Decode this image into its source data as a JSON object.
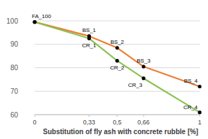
{
  "chart_data": {
    "type": "line",
    "x_label": "Substitution of fly ash with concrete rubble [%]",
    "x": [
      0,
      0.33,
      0.5,
      0.66,
      1
    ],
    "series": [
      {
        "name": "BS",
        "color": "#ed7d31",
        "marker": "circle",
        "values": [
          99.5,
          93.5,
          88.5,
          80.5,
          72
        ],
        "point_labels": [
          "FA_100",
          "BS_1",
          "BS_2",
          "BS_3",
          "BS_4"
        ]
      },
      {
        "name": "CR",
        "color": "#8cc152",
        "marker": "circle",
        "values": [
          99.5,
          92.5,
          83,
          75.5,
          61
        ],
        "point_labels": [
          null,
          "CR_1",
          "CR_2",
          "CR_3",
          "CR_4"
        ]
      }
    ],
    "xlim": [
      0,
      1
    ],
    "xticks": [
      0,
      {
        "value": 0.33,
        "label": "0,33"
      },
      {
        "value": 0.5,
        "label": "0,5"
      },
      {
        "value": 0.66,
        "label": "0,66"
      },
      1
    ],
    "ylim": [
      60,
      100
    ],
    "yticks": [
      60,
      70,
      80,
      90,
      100
    ],
    "grid": true
  }
}
